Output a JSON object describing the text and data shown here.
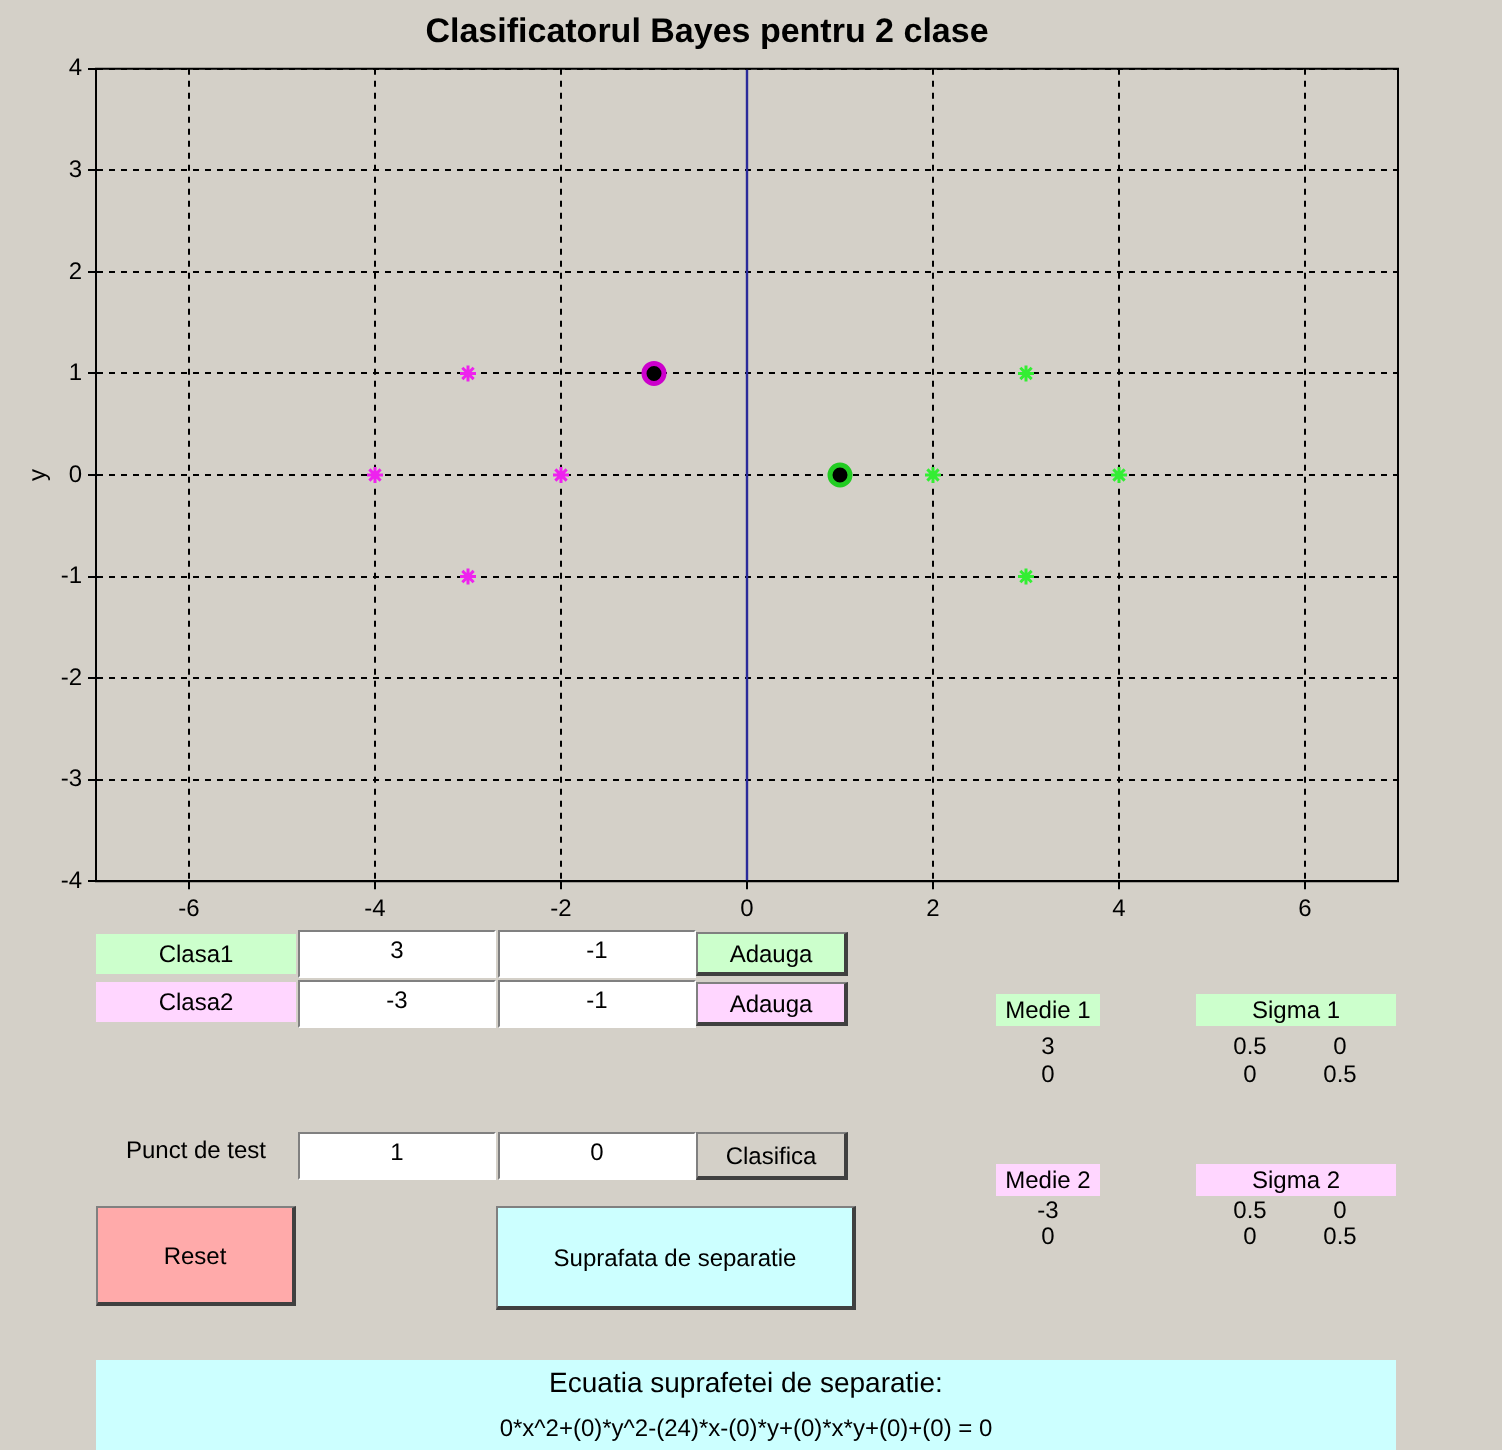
{
  "chart_data": {
    "type": "scatter",
    "title": "Clasificatorul Bayes pentru 2 clase",
    "ylabel": "y",
    "xlim": [
      -7,
      7
    ],
    "xticks": [
      -6,
      -4,
      -2,
      0,
      2,
      4,
      6
    ],
    "ylim": [
      -4,
      4
    ],
    "yticks": [
      -4,
      -3,
      -2,
      -1,
      0,
      1,
      2,
      3,
      4
    ],
    "grid": true,
    "line_style": "dashed",
    "legend": false,
    "series": [
      {
        "marker": "cross",
        "color": "#33ee33",
        "x": [
          2,
          3,
          3,
          4
        ],
        "values": [
          0,
          1,
          -1,
          0
        ]
      },
      {
        "marker": "cross",
        "color": "#ee22ee",
        "x": [
          -4,
          -3,
          -3,
          -2
        ],
        "values": [
          0,
          1,
          -1,
          0
        ]
      },
      {
        "marker": "circle",
        "color": "#22cc22",
        "x": [
          1
        ],
        "values": [
          0
        ]
      },
      {
        "marker": "circle",
        "color": "#cc00cc",
        "x": [
          -1
        ],
        "values": [
          1
        ]
      }
    ],
    "ref_lines": [
      {
        "axis": "x",
        "value": 0,
        "color": "#2a2a9a",
        "line_style": "solid"
      }
    ],
    "annotations": [
      "Clasa1",
      "3",
      "-1",
      "Adauga",
      "Clasa2",
      "-3",
      "-1",
      "Adauga",
      "Punct de test",
      "1",
      "0",
      "Clasifica",
      "Reset",
      "Suprafata de separatie",
      "Medie 1",
      "3",
      "0",
      "Sigma 1",
      "0.5",
      "0",
      "0",
      "0.5",
      "Medie 2",
      "-3",
      "0",
      "Sigma 2",
      "0.5",
      "0",
      "0",
      "0.5",
      "Ecuatia suprafetei de separatie:",
      "0*x^2+(0)*y^2-(24)*x-(0)*y+(0)*x*y+(0)+(0) = 0"
    ]
  }
}
